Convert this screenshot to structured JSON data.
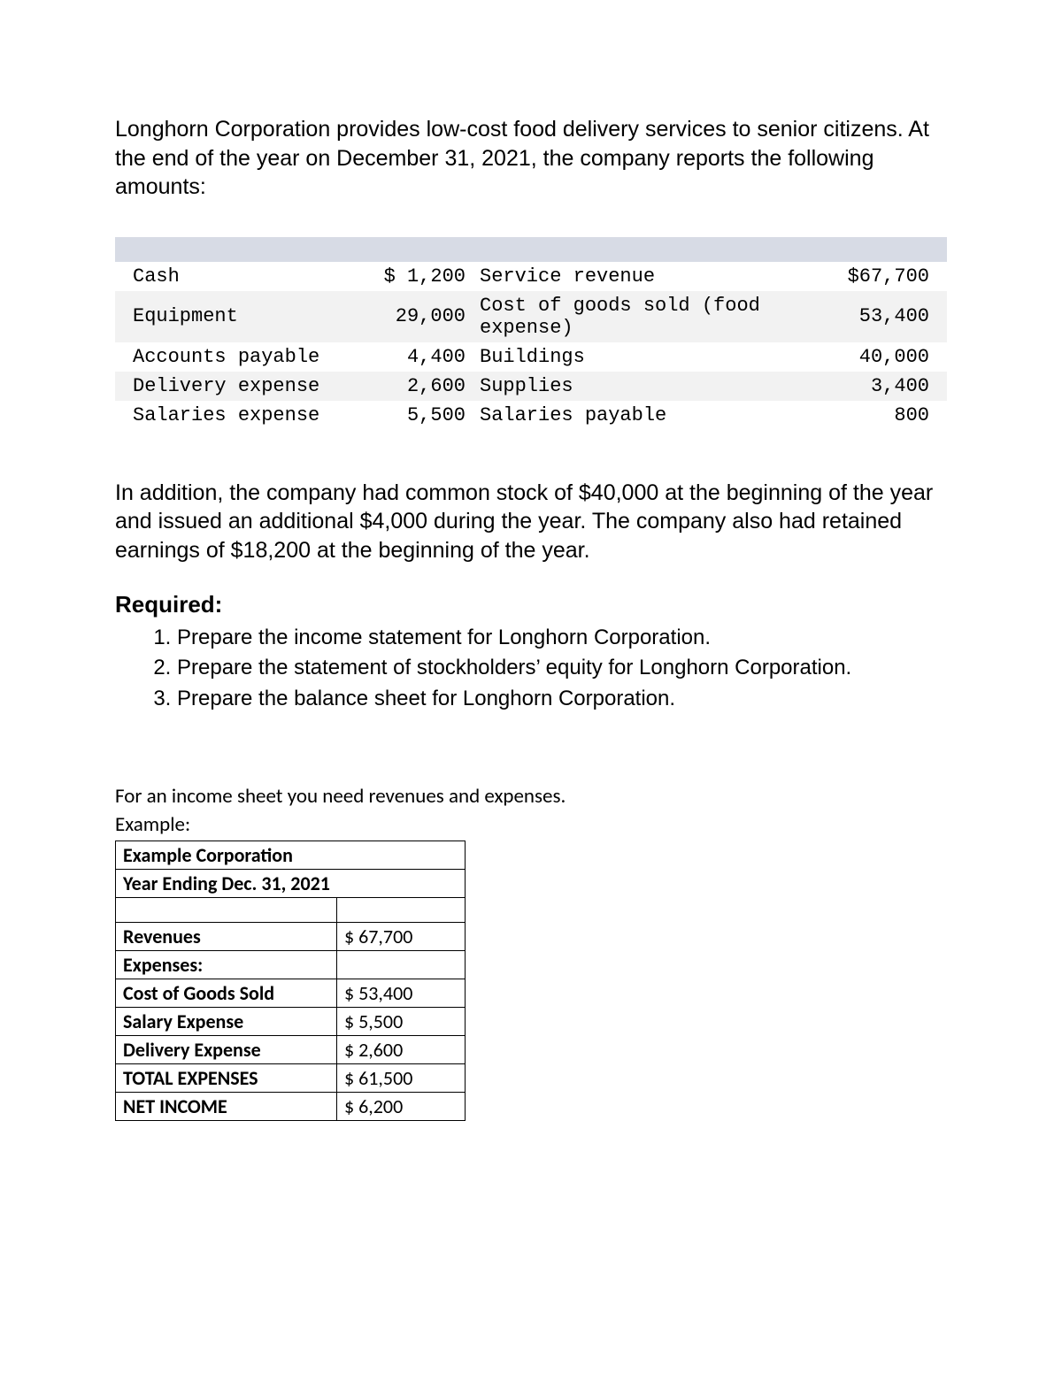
{
  "intro": "Longhorn Corporation provides low-cost food delivery services to senior citizens. At the end of the year on December 31, 2021, the company reports the following amounts:",
  "amounts": {
    "rows": [
      {
        "a_label": "Cash",
        "a_val": "$ 1,200",
        "b_label": "Service revenue",
        "b_val": "$67,700",
        "shade": false
      },
      {
        "a_label": "Equipment",
        "a_val": "29,000",
        "b_label": "Cost of goods sold (food expense)",
        "b_val": "53,400",
        "shade": true
      },
      {
        "a_label": "Accounts payable",
        "a_val": "4,400",
        "b_label": "Buildings",
        "b_val": "40,000",
        "shade": false
      },
      {
        "a_label": "Delivery expense",
        "a_val": "2,600",
        "b_label": "Supplies",
        "b_val": "3,400",
        "shade": true
      },
      {
        "a_label": "Salaries expense",
        "a_val": "5,500",
        "b_label": "Salaries payable",
        "b_val": "800",
        "shade": false
      }
    ]
  },
  "addendum": "In addition, the company had common stock of $40,000 at the beginning of the year and issued an additional $4,000 during the year. The company also had retained earnings of $18,200 at the beginning of the year.",
  "required_heading": "Required:",
  "required_items": [
    "Prepare the income statement for Longhorn Corporation.",
    "Prepare the statement of stockholders’ equity for Longhorn Corporation.",
    "Prepare the balance sheet for Longhorn Corporation."
  ],
  "note_line1": "For an income sheet you need revenues and expenses.",
  "note_line2": "Example:",
  "example": {
    "title": "Example Corporation",
    "subtitle": "Year Ending Dec. 31, 2021",
    "rows": [
      {
        "label": "Revenues",
        "val": "$ 67,700",
        "bold_label": true
      },
      {
        "label": "Expenses:",
        "val": "",
        "bold_label": true
      },
      {
        "label": "Cost of Goods Sold",
        "val": "$ 53,400",
        "bold_label": true
      },
      {
        "label": "Salary Expense",
        "val": "$ 5,500",
        "bold_label": true
      },
      {
        "label": "Delivery Expense",
        "val": "$ 2,600",
        "bold_label": true
      },
      {
        "label": "TOTAL EXPENSES",
        "val": "$ 61,500",
        "bold_label": true
      },
      {
        "label": "NET INCOME",
        "val": "$ 6,200",
        "bold_label": true
      }
    ]
  }
}
